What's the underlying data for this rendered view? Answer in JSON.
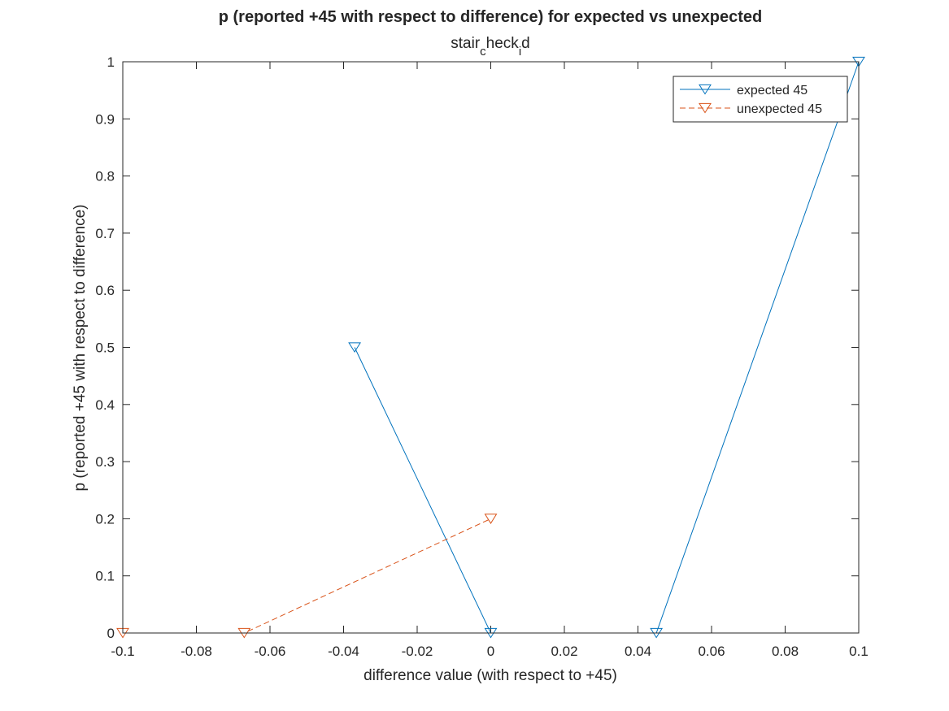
{
  "chart_data": {
    "type": "line",
    "title": "p  (reported +45 with respect to difference) for expected vs unexpected",
    "subtitle": {
      "base1": "stair",
      "sub1": "c",
      "base2": "heck",
      "sub2": "i",
      "base3": "d"
    },
    "xlabel": "difference value (with respect to +45)",
    "ylabel": "p (reported +45 with respect to difference)",
    "xlim": [
      -0.1,
      0.1
    ],
    "ylim": [
      0,
      1
    ],
    "xticks": [
      -0.1,
      -0.08,
      -0.06,
      -0.04,
      -0.02,
      0,
      0.02,
      0.04,
      0.06,
      0.08,
      0.1
    ],
    "xtick_labels": [
      "-0.1",
      "-0.08",
      "-0.06",
      "-0.04",
      "-0.02",
      "0",
      "0.02",
      "0.04",
      "0.06",
      "0.08",
      "0.1"
    ],
    "yticks": [
      0,
      0.1,
      0.2,
      0.3,
      0.4,
      0.5,
      0.6,
      0.7,
      0.8,
      0.9,
      1
    ],
    "ytick_labels": [
      "0",
      "0.1",
      "0.2",
      "0.3",
      "0.4",
      "0.5",
      "0.6",
      "0.7",
      "0.8",
      "0.9",
      "1"
    ],
    "grid": false,
    "legend_position": "top-right",
    "series": [
      {
        "name": "expected 45",
        "color": "#0072BD",
        "line_style": "solid",
        "marker": "triangle-down",
        "points": [
          [
            -0.037,
            0.5
          ],
          [
            0,
            0
          ],
          [
            0.045,
            0
          ],
          [
            0.1,
            1
          ]
        ]
      },
      {
        "name": "unexpected 45",
        "color": "#D95319",
        "line_style": "dashed",
        "marker": "triangle-down",
        "points": [
          [
            -0.1,
            0
          ],
          [
            -0.067,
            0
          ],
          [
            0,
            0.2
          ]
        ]
      }
    ]
  }
}
